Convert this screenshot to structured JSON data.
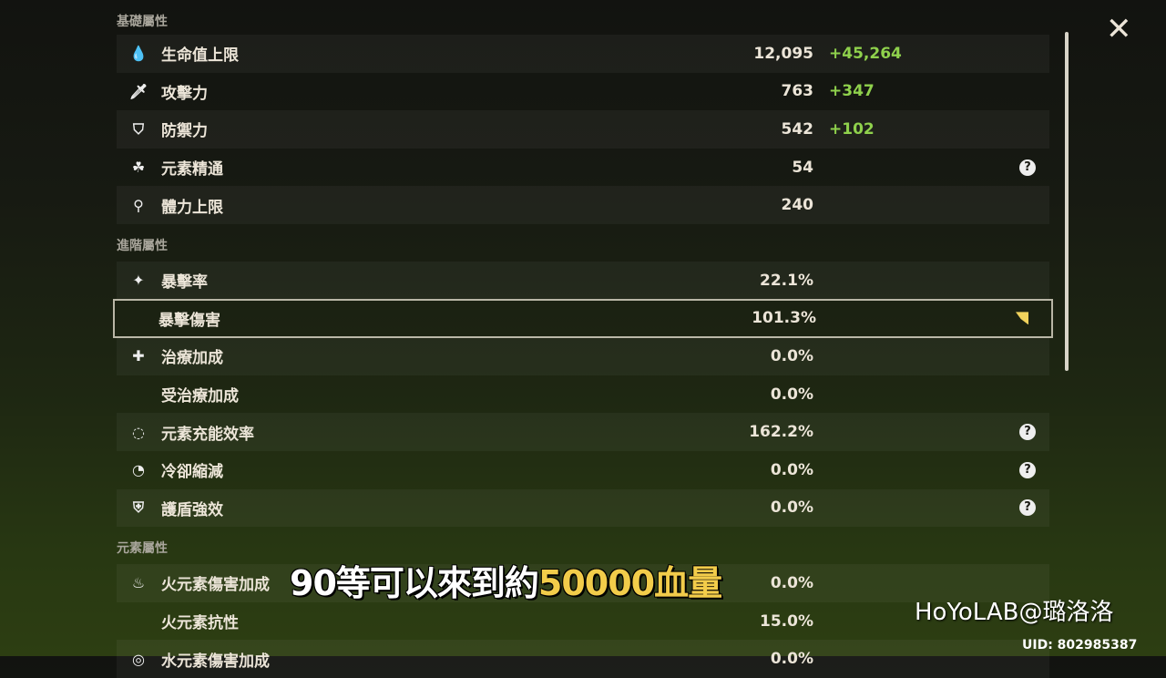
{
  "sections": [
    {
      "title": "基礎屬性",
      "rows": [
        {
          "icon": "hp-drop-icon",
          "glyph": "💧",
          "label": "生命值上限",
          "value": "12,095",
          "bonus": "+45,264"
        },
        {
          "icon": "sword-icon",
          "glyph": "🗡",
          "label": "攻擊力",
          "value": "763",
          "bonus": "+347"
        },
        {
          "icon": "shield-icon",
          "glyph": "⛉",
          "label": "防禦力",
          "value": "542",
          "bonus": "+102"
        },
        {
          "icon": "elemental-mastery-icon",
          "glyph": "☘",
          "label": "元素精通",
          "value": "54",
          "help": true
        },
        {
          "icon": "stamina-icon",
          "glyph": "⚲",
          "label": "體力上限",
          "value": "240"
        }
      ]
    },
    {
      "title": "進階屬性",
      "rows": [
        {
          "icon": "crit-rate-icon",
          "glyph": "✦",
          "label": "暴擊率",
          "value": "22.1%"
        },
        {
          "label": "暴擊傷害",
          "value": "101.3%",
          "selected": true,
          "star": true
        },
        {
          "icon": "healing-cross-icon",
          "glyph": "✚",
          "label": "治療加成",
          "value": "0.0%"
        },
        {
          "label": "受治療加成",
          "value": "0.0%"
        },
        {
          "icon": "energy-recharge-icon",
          "glyph": "◌",
          "label": "元素充能效率",
          "value": "162.2%",
          "help": true
        },
        {
          "icon": "cooldown-icon",
          "glyph": "◔",
          "label": "冷卻縮減",
          "value": "0.0%",
          "help": true
        },
        {
          "icon": "shield-strength-icon",
          "glyph": "⛨",
          "label": "護盾強效",
          "value": "0.0%",
          "help": true
        }
      ]
    },
    {
      "title": "元素屬性",
      "rows": [
        {
          "icon": "pyro-icon",
          "glyph": "♨",
          "label": "火元素傷害加成",
          "value": "0.0%"
        },
        {
          "label": "火元素抗性",
          "value": "15.0%"
        },
        {
          "icon": "hydro-icon",
          "glyph": "◎",
          "label": "水元素傷害加成",
          "value": "0.0%"
        }
      ]
    }
  ],
  "help_glyph": "?",
  "close_glyph": "✕",
  "subtitle": {
    "prefix": "90等可以來到約",
    "highlight": "50000血量"
  },
  "watermark": "HoYoLAB@璐洛洛",
  "uid": "UID: 802985387"
}
